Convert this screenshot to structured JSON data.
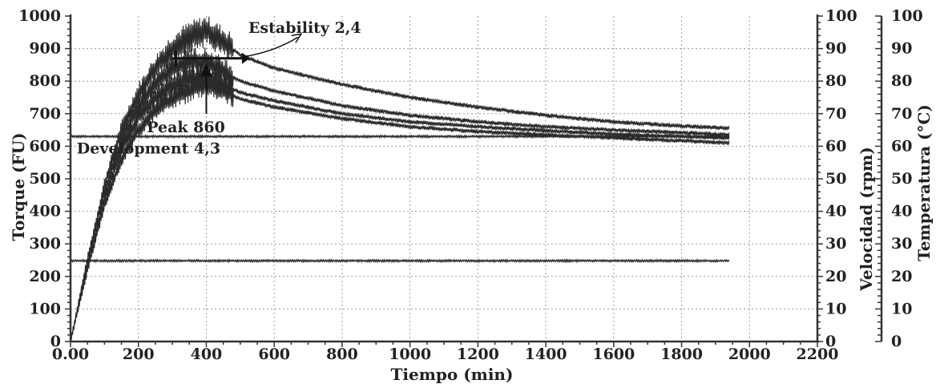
{
  "chart_data": {
    "type": "line",
    "title": "",
    "xlabel": "Tiempo (min)",
    "ylabel": "Torque (FU)",
    "y2label": "Velocidad (rpm)",
    "y3label": "Temperatura (°C)",
    "xlim": [
      0,
      2200
    ],
    "ylim": [
      0,
      1000
    ],
    "y2lim": [
      0,
      100
    ],
    "y3lim": [
      0,
      100
    ],
    "grid": true,
    "x_ticks": [
      "0.00",
      "200",
      "400",
      "600",
      "800",
      "1000",
      "1200",
      "1400",
      "1600",
      "1800",
      "2000",
      "2200"
    ],
    "y_ticks": [
      "0",
      "100",
      "200",
      "300",
      "400",
      "500",
      "600",
      "700",
      "800",
      "900",
      "1000"
    ],
    "y2_ticks": [
      "0",
      "10",
      "20",
      "30",
      "40",
      "50",
      "60",
      "70",
      "80",
      "90",
      "100"
    ],
    "y3_ticks": [
      "0",
      "10",
      "20",
      "30",
      "40",
      "50",
      "60",
      "70",
      "80",
      "90",
      "100"
    ],
    "series": [
      {
        "x": [
          0,
          50,
          100,
          150,
          200,
          250,
          300,
          350,
          400,
          450,
          500,
          600,
          800,
          1000,
          1200,
          1400,
          1600,
          1800,
          1940
        ],
        "values": [
          0,
          250,
          480,
          650,
          760,
          840,
          900,
          935,
          955,
          920,
          880,
          840,
          790,
          750,
          720,
          695,
          675,
          662,
          655
        ]
      },
      {
        "x": [
          0,
          50,
          100,
          150,
          200,
          250,
          300,
          350,
          400,
          450,
          500,
          600,
          800,
          1000,
          1200,
          1400,
          1600,
          1800,
          1940
        ],
        "values": [
          0,
          240,
          460,
          620,
          720,
          790,
          840,
          860,
          860,
          830,
          800,
          770,
          725,
          695,
          675,
          660,
          650,
          642,
          635
        ]
      },
      {
        "x": [
          0,
          50,
          100,
          150,
          200,
          250,
          300,
          350,
          400,
          450,
          500,
          600,
          800,
          1000,
          1200,
          1400,
          1600,
          1800,
          1940
        ],
        "values": [
          0,
          230,
          440,
          590,
          690,
          750,
          790,
          805,
          815,
          790,
          765,
          740,
          700,
          675,
          660,
          648,
          637,
          630,
          625
        ]
      },
      {
        "x": [
          0,
          50,
          100,
          150,
          200,
          250,
          300,
          350,
          400,
          450,
          500,
          600,
          800,
          1000,
          1200,
          1400,
          1600,
          1800,
          1940
        ],
        "values": [
          0,
          220,
          420,
          560,
          650,
          710,
          745,
          770,
          790,
          770,
          745,
          720,
          685,
          660,
          645,
          635,
          625,
          617,
          610
        ]
      },
      {
        "x": [
          0,
          1940
        ],
        "values": [
          630,
          630
        ]
      },
      {
        "x": [
          0,
          1940
        ],
        "values": [
          248,
          248
        ]
      }
    ],
    "annotations": [
      {
        "text": "Estability 2,4",
        "x": 690,
        "y": 960
      },
      {
        "text": "Peak 860",
        "x": 340,
        "y": 655
      },
      {
        "text": "Development 4,3",
        "x": 230,
        "y": 590
      }
    ]
  }
}
